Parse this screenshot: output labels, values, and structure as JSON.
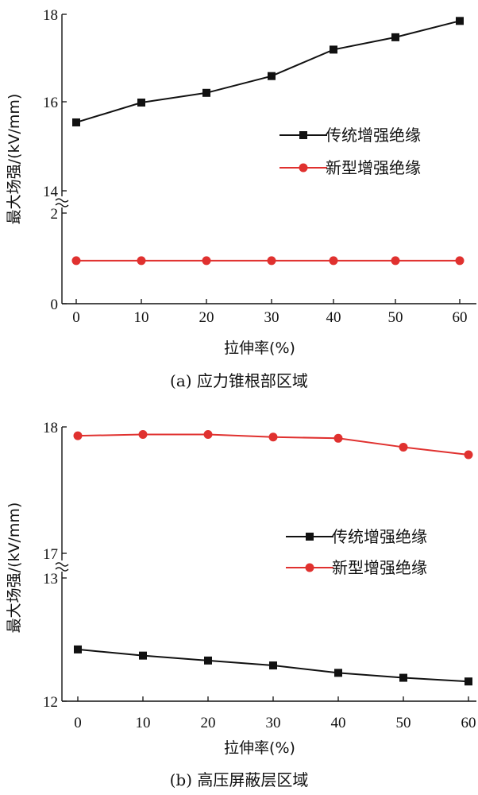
{
  "chart_data": [
    {
      "type": "line",
      "caption": "(a) 应力锥根部区域",
      "xlabel": "拉伸率(%)",
      "ylabel": "最大场强/(kV/mm)",
      "x": [
        0,
        10,
        20,
        30,
        40,
        50,
        60
      ],
      "xticks": [
        "0",
        "10",
        "20",
        "30",
        "40",
        "50",
        "60"
      ],
      "ylim": [
        0,
        18
      ],
      "axis_break": [
        2,
        14
      ],
      "yticks": [
        "0",
        "2",
        "14",
        "16",
        "18"
      ],
      "grid": false,
      "legend_position": "right-middle",
      "series": [
        {
          "name": "传统增强绝缘",
          "marker": "square",
          "color": "#111111",
          "values": [
            15.55,
            16.0,
            16.22,
            16.6,
            17.2,
            17.48,
            17.85
          ]
        },
        {
          "name": "新型增强绝缘",
          "marker": "circle",
          "color": "#e0312f",
          "values": [
            0.95,
            0.95,
            0.95,
            0.95,
            0.95,
            0.95,
            0.95
          ]
        }
      ]
    },
    {
      "type": "line",
      "caption": "(b) 高压屏蔽层区域",
      "xlabel": "拉伸率(%)",
      "ylabel": "最大场强/(kV/mm)",
      "x": [
        0,
        10,
        20,
        30,
        40,
        50,
        60
      ],
      "xticks": [
        "0",
        "10",
        "20",
        "30",
        "40",
        "50",
        "60"
      ],
      "ylim": [
        12,
        18
      ],
      "axis_break": [
        13,
        17
      ],
      "yticks": [
        "12",
        "13",
        "17",
        "18"
      ],
      "grid": false,
      "legend_position": "right-middle",
      "series": [
        {
          "name": "传统增强绝缘",
          "marker": "square",
          "color": "#111111",
          "values": [
            12.42,
            12.37,
            12.33,
            12.29,
            12.23,
            12.19,
            12.16
          ]
        },
        {
          "name": "新型增强绝缘",
          "marker": "circle",
          "color": "#e0312f",
          "values": [
            17.93,
            17.94,
            17.94,
            17.92,
            17.91,
            17.84,
            17.78
          ]
        }
      ]
    }
  ]
}
